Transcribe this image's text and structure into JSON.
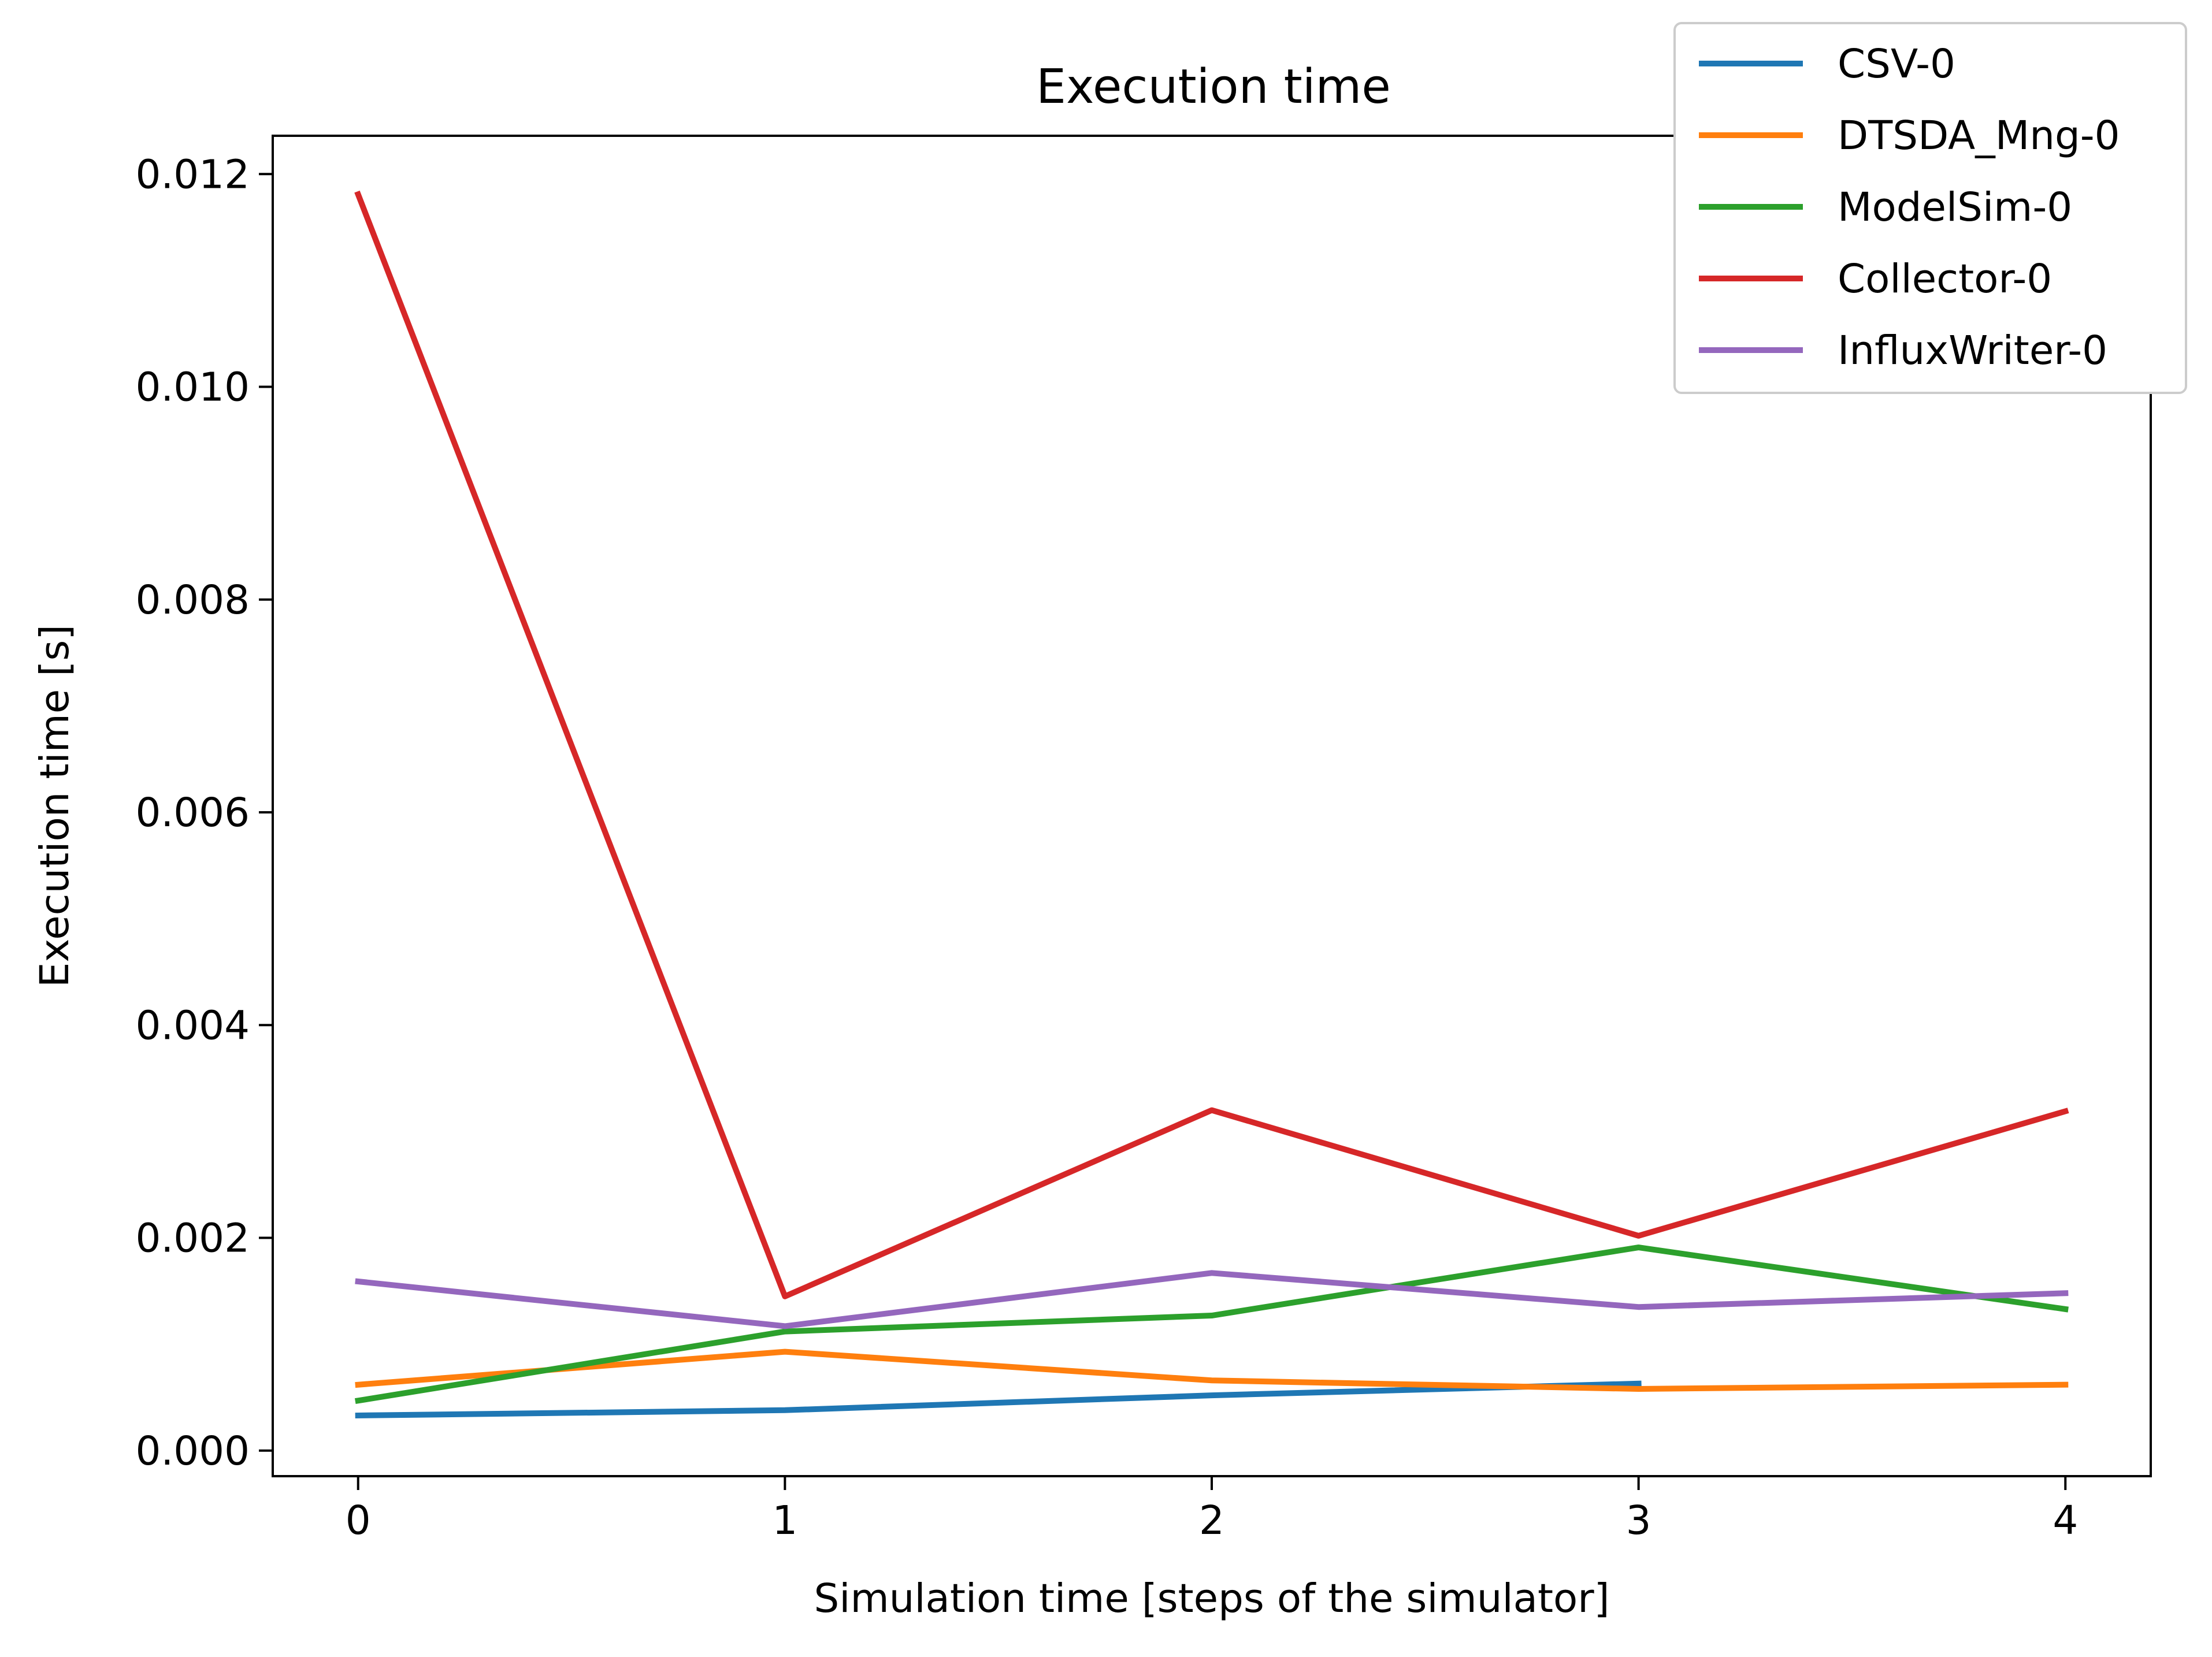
{
  "chart_data": {
    "type": "line",
    "title": "Execution time",
    "xlabel": "Simulation time [steps of the simulator]",
    "ylabel": "Execution time [s]",
    "x": [
      0,
      1,
      2,
      3,
      4
    ],
    "xticks": [
      "0",
      "1",
      "2",
      "3",
      "4"
    ],
    "xlim": [
      -0.2,
      4.2
    ],
    "yticks": [
      "0.000",
      "0.002",
      "0.004",
      "0.006",
      "0.008",
      "0.010",
      "0.012"
    ],
    "ylim": [
      -0.00024,
      0.01236
    ],
    "grid": false,
    "legend_position": "top-right",
    "series": [
      {
        "name": "CSV-0",
        "color": "#1f77b4",
        "x": [
          0,
          1,
          2,
          3
        ],
        "values": [
          0.00033,
          0.00038,
          0.00052,
          0.00063
        ]
      },
      {
        "name": "DTSDA_Mng-0",
        "color": "#ff7f0e",
        "x": [
          0,
          1,
          2,
          3,
          4
        ],
        "values": [
          0.00062,
          0.00093,
          0.00066,
          0.00058,
          0.00062
        ]
      },
      {
        "name": "ModelSim-0",
        "color": "#2ca02c",
        "x": [
          0,
          1,
          2,
          3,
          4
        ],
        "values": [
          0.00047,
          0.00112,
          0.00127,
          0.00191,
          0.00133
        ]
      },
      {
        "name": "Collector-0",
        "color": "#d62728",
        "x": [
          0,
          1,
          2,
          3,
          4
        ],
        "values": [
          0.01181,
          0.00145,
          0.0032,
          0.00202,
          0.00319
        ]
      },
      {
        "name": "InfluxWriter-0",
        "color": "#9467bd",
        "x": [
          0,
          1,
          2,
          3,
          4
        ],
        "values": [
          0.00159,
          0.00117,
          0.00167,
          0.00135,
          0.00148
        ]
      }
    ]
  }
}
